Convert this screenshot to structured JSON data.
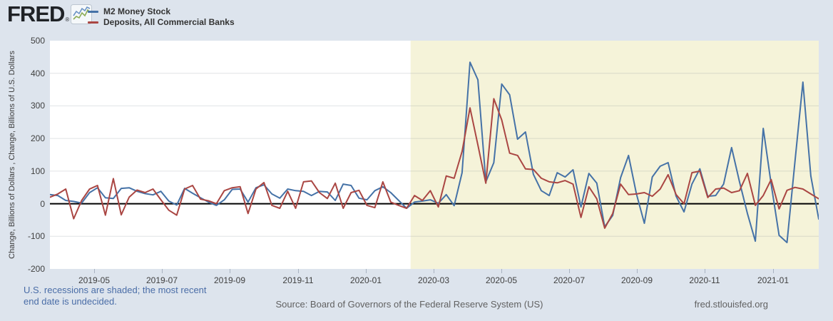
{
  "header": {
    "logo_text": "FRED",
    "logo_reg": "®",
    "legend": [
      {
        "label": "M2 Money Stock",
        "color": "#4572a7"
      },
      {
        "label": "Deposits, All Commercial Banks",
        "color": "#aa4643"
      }
    ]
  },
  "footer": {
    "recession_note_line1": "U.S. recessions are shaded; the most recent",
    "recession_note_line2": "end date is undecided.",
    "source": "Source: Board of Governors of the Federal Reserve System (US)",
    "site": "fred.stlouisfed.org"
  },
  "chart_data": {
    "type": "line",
    "title": "",
    "xlabel": "",
    "ylabel": "Change, Billions of Dollars , Change, Billions of U.S. Dollars",
    "ylim": [
      -200,
      500
    ],
    "yticks": [
      500,
      400,
      300,
      200,
      100,
      0,
      -100,
      -200
    ],
    "x_unit": "week",
    "x_start": "2019-04",
    "x_end": "2021-02",
    "grid": true,
    "zero_line": true,
    "legend_position": "top-left-header",
    "plot_bg": "#ffffff",
    "grid_color": "rgba(120,130,140,0.22)",
    "recession": {
      "start_index": 45.5,
      "end_index": 97,
      "color": "#f5f3d9"
    },
    "xticks": [
      {
        "i": 5.6,
        "label": "2019-05"
      },
      {
        "i": 14.16,
        "label": "2019-07"
      },
      {
        "i": 22.72,
        "label": "2019-09"
      },
      {
        "i": 31.28,
        "label": "2019-11"
      },
      {
        "i": 39.84,
        "label": "2020-01"
      },
      {
        "i": 48.4,
        "label": "2020-03"
      },
      {
        "i": 56.96,
        "label": "2020-05"
      },
      {
        "i": 65.52,
        "label": "2020-07"
      },
      {
        "i": 74.08,
        "label": "2020-09"
      },
      {
        "i": 82.64,
        "label": "2020-11"
      },
      {
        "i": 91.2,
        "label": "2021-01"
      }
    ],
    "series": [
      {
        "name": "M2 Money Stock",
        "color": "#4572a7",
        "values": [
          28,
          25,
          10,
          7,
          2,
          34,
          49,
          18,
          16,
          47,
          49,
          38,
          31,
          27,
          38,
          8,
          -4,
          47,
          32,
          18,
          5,
          -5,
          12,
          44,
          45,
          5,
          49,
          58,
          30,
          17,
          45,
          40,
          38,
          25,
          38,
          36,
          10,
          60,
          56,
          17,
          12,
          40,
          52,
          34,
          10,
          -14,
          5,
          8,
          12,
          1,
          28,
          -6,
          95,
          434,
          380,
          67,
          126,
          367,
          334,
          198,
          220,
          90,
          40,
          25,
          95,
          82,
          104,
          -10,
          93,
          63,
          -71,
          -36,
          80,
          148,
          30,
          -60,
          82,
          115,
          126,
          23,
          -25,
          60,
          107,
          23,
          25,
          60,
          172,
          67,
          -30,
          -115,
          231,
          60,
          -97,
          -119,
          130,
          373,
          85,
          -47
        ]
      },
      {
        "name": "Deposits, All Commercial Banks",
        "color": "#aa4643",
        "values": [
          20,
          30,
          45,
          -46,
          10,
          45,
          56,
          -35,
          77,
          -34,
          20,
          42,
          34,
          45,
          12,
          -20,
          -35,
          45,
          56,
          14,
          9,
          0,
          40,
          49,
          52,
          -30,
          45,
          65,
          -5,
          -14,
          38,
          -14,
          67,
          70,
          34,
          16,
          63,
          -14,
          34,
          41,
          -5,
          -12,
          67,
          5,
          -5,
          -14,
          25,
          10,
          40,
          -10,
          85,
          78,
          160,
          294,
          180,
          63,
          322,
          257,
          155,
          148,
          107,
          105,
          78,
          67,
          64,
          71,
          60,
          -42,
          52,
          15,
          -75,
          -30,
          60,
          28,
          30,
          34,
          23,
          45,
          89,
          28,
          0,
          95,
          100,
          19,
          45,
          48,
          34,
          40,
          93,
          -5,
          25,
          74,
          -16,
          41,
          50,
          45,
          30,
          15
        ]
      }
    ]
  }
}
